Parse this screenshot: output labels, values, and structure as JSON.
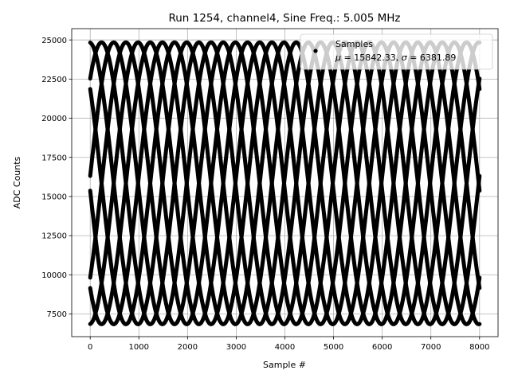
{
  "chart_data": {
    "type": "line",
    "title": "Run 1254, channel4, Sine Freq.: 5.005 MHz",
    "xlabel": "Sample #",
    "ylabel": "ADC Counts",
    "xlim": [
      -380,
      8380
    ],
    "ylim": [
      6050,
      25720
    ],
    "x_ticks": [
      0,
      1000,
      2000,
      3000,
      4000,
      5000,
      6000,
      7000,
      8000
    ],
    "y_ticks": [
      7500,
      10000,
      12500,
      15000,
      17500,
      20000,
      22500,
      25000
    ],
    "grid": true,
    "legend_placement": "top-right",
    "colors": {
      "series": "#000000",
      "grid": "#b0b0b0",
      "legend_frame": "#cccccc"
    },
    "signal": {
      "mean": 15842.33,
      "amplitude": 9000,
      "samples_per_period": 2000,
      "samples": 8000
    },
    "series": [
      {
        "phase_deg": 93,
        "start_value": 24830
      },
      {
        "phase_deg": 48,
        "start_value": 22530
      },
      {
        "phase_deg": 3,
        "start_value": 16320
      },
      {
        "phase_deg": -42,
        "start_value": 9820
      },
      {
        "phase_deg": -87,
        "start_value": 6870
      },
      {
        "phase_deg": -132,
        "start_value": 9140
      },
      {
        "phase_deg": -177,
        "start_value": 15370
      },
      {
        "phase_deg": 138,
        "start_value": 21900
      }
    ],
    "legend": {
      "label": "Samples",
      "stats_mu_value": "15842.33",
      "stats_sigma_value": "6381.89"
    }
  }
}
